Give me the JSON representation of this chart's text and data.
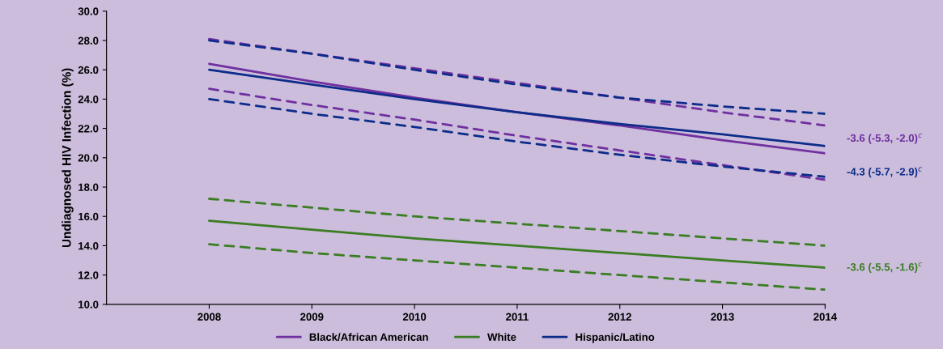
{
  "chart_data": {
    "type": "line",
    "ylabel": "Undiagnosed HIV Infection (%)",
    "x": [
      2008,
      2009,
      2010,
      2011,
      2012,
      2013,
      2014
    ],
    "series": [
      {
        "name": "Black/African American",
        "color": "#7030a0",
        "values": [
          26.4,
          25.2,
          24.1,
          23.1,
          22.2,
          21.2,
          20.3
        ]
      },
      {
        "color": "#7030a0",
        "line_style": "dashed",
        "values": [
          28.1,
          27.1,
          26.1,
          25.1,
          24.1,
          23.1,
          22.2
        ]
      },
      {
        "color": "#7030a0",
        "line_style": "dashed",
        "values": [
          24.7,
          23.6,
          22.6,
          21.5,
          20.5,
          19.5,
          18.5
        ]
      },
      {
        "name": "White",
        "color": "#3a7d22",
        "values": [
          15.7,
          15.1,
          14.5,
          14.0,
          13.5,
          13.0,
          12.5
        ]
      },
      {
        "color": "#3a7d22",
        "line_style": "dashed",
        "values": [
          17.2,
          16.6,
          16.0,
          15.5,
          15.0,
          14.5,
          14.0
        ]
      },
      {
        "color": "#3a7d22",
        "line_style": "dashed",
        "values": [
          14.1,
          13.5,
          13.0,
          12.5,
          12.0,
          11.5,
          11.0
        ]
      },
      {
        "name": "Hispanic/Latino",
        "color": "#0d2c8a",
        "values": [
          26.0,
          25.0,
          24.0,
          23.1,
          22.3,
          21.6,
          20.8
        ]
      },
      {
        "color": "#0d2c8a",
        "line_style": "dashed",
        "values": [
          28.0,
          27.1,
          26.0,
          25.0,
          24.1,
          23.5,
          23.0
        ]
      },
      {
        "color": "#0d2c8a",
        "line_style": "dashed",
        "values": [
          24.0,
          23.0,
          22.1,
          21.1,
          20.2,
          19.4,
          18.7
        ]
      }
    ],
    "annotations": [
      "-3.6 (-5.3, -2.0)$^{c}$",
      "-4.3 (-5.7, -2.9)$^{c}$",
      "-3.6 (-5.5, -1.6)$^{c}$"
    ],
    "xlim": [
      2007,
      2014
    ],
    "xticks": [
      2008,
      2009,
      2010,
      2011,
      2012,
      2013,
      2014
    ],
    "ylim": [
      10,
      30
    ],
    "yticks": [
      {
        "value": 10,
        "label": "10.0"
      },
      {
        "value": 12,
        "label": "12.0"
      },
      {
        "value": 14,
        "label": "14.0"
      },
      {
        "value": 16,
        "label": "16.0"
      },
      {
        "value": 18,
        "label": "18.0"
      },
      {
        "value": 20,
        "label": "20.0"
      },
      {
        "value": 22,
        "label": "22.0"
      },
      {
        "value": 24,
        "label": "24.0"
      },
      {
        "value": 26,
        "label": "26.0"
      },
      {
        "value": 28,
        "label": "28.0"
      },
      {
        "value": 30,
        "label": "30.0"
      }
    ],
    "grid": false,
    "legend": "bottom",
    "marker": "none",
    "line_style": "solid"
  }
}
